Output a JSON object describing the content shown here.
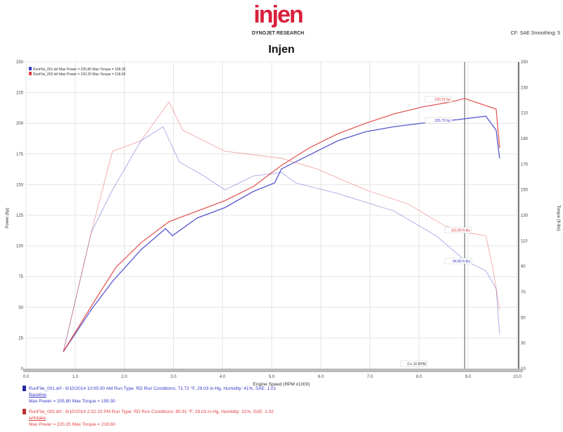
{
  "header": {
    "logo": "injen",
    "subtitle": "DYNOJET RESEARCH",
    "corner": "CF: SAE  Smoothing: 5",
    "title": "Injen"
  },
  "chart_data": {
    "type": "line",
    "xlabel": "Engine Speed (RPM x1000)",
    "ylabel": "Power (hp)",
    "y2label": "Torque (ft-lbs)",
    "xlim": [
      0,
      10
    ],
    "ylim": [
      0,
      250
    ],
    "y2lim": [
      10,
      250
    ],
    "xticks": [
      "0.0",
      "1.0",
      "2.0",
      "3.0",
      "4.0",
      "5.0",
      "6.0",
      "7.0",
      "8.0",
      "9.0",
      "10.0"
    ],
    "yticks": [
      "0",
      "25",
      "50",
      "75",
      "100",
      "125",
      "150",
      "175",
      "200",
      "225",
      "250"
    ],
    "y2ticks": [
      "10",
      "30",
      "50",
      "70",
      "90",
      "110",
      "130",
      "150",
      "170",
      "190",
      "210",
      "230",
      "250"
    ],
    "grid": true,
    "legend_position": "top-left",
    "cursor_rpm": 8.93,
    "colors": {
      "blue": "#3a3ac8",
      "red": "#e04040"
    },
    "series": [
      {
        "name": "RunFile_001.drf",
        "color": "blue",
        "measure": "power",
        "x": [
          0.76,
          1.33,
          1.76,
          2.34,
          2.84,
          2.98,
          3.48,
          4.05,
          4.63,
          5.06,
          5.2,
          5.63,
          6.35,
          6.92,
          7.49,
          8.07,
          8.78,
          9.36,
          9.57,
          9.64
        ],
        "y": [
          13.8,
          48.2,
          71.1,
          96.9,
          114.1,
          108.4,
          122.7,
          131.3,
          144.5,
          151.4,
          162.8,
          171.4,
          185.8,
          193.2,
          197.2,
          200.1,
          202.9,
          205.8,
          194.4,
          171.4
        ]
      },
      {
        "name": "RunFile_002.drf",
        "color": "red",
        "measure": "power",
        "x": [
          0.76,
          1.33,
          1.83,
          2.34,
          2.91,
          3.48,
          4.05,
          4.63,
          5.2,
          5.77,
          6.35,
          6.92,
          7.49,
          8.07,
          8.64,
          8.93,
          9.36,
          9.57,
          9.64
        ],
        "y": [
          13.8,
          51.0,
          82.6,
          102.6,
          119.8,
          128.4,
          137.0,
          148.5,
          165.7,
          180.0,
          191.5,
          200.1,
          207.6,
          213.3,
          217.3,
          220.2,
          214.4,
          211.6,
          180.0
        ]
      },
      {
        "name": "RunFile_001.drf",
        "color": "blue",
        "measure": "torque",
        "x": [
          0.76,
          1.33,
          1.76,
          2.34,
          2.79,
          3.12,
          3.62,
          4.05,
          4.63,
          5.2,
          5.49,
          6.35,
          7.49,
          8.35,
          8.93,
          9.36,
          9.57,
          9.64
        ],
        "y": [
          23.2,
          116.8,
          149.8,
          188.3,
          199.3,
          171.8,
          160.8,
          149.8,
          160.8,
          163.5,
          155.3,
          147.0,
          133.3,
          114.0,
          94.8,
          86.5,
          72.7,
          37.0
        ]
      },
      {
        "name": "RunFile_002.drf",
        "color": "red",
        "measure": "torque",
        "x": [
          0.76,
          1.33,
          1.76,
          2.34,
          2.91,
          3.19,
          4.05,
          5.2,
          5.92,
          6.92,
          7.78,
          8.5,
          8.93,
          9.36,
          9.5,
          9.64
        ],
        "y": [
          23.2,
          116.8,
          180.1,
          188.3,
          218.6,
          196.6,
          180.1,
          174.6,
          166.3,
          149.8,
          138.8,
          122.3,
          116.8,
          114.0,
          89.3,
          56.2
        ]
      }
    ],
    "annotations": [
      {
        "text": "220.22 hp",
        "color": "red"
      },
      {
        "text": "205.79 hp",
        "color": "blue"
      },
      {
        "text": "116.80 ft-lbs",
        "color": "red"
      },
      {
        "text": "94.80 ft-lbs",
        "color": "blue"
      },
      {
        "text": "0 x 10 RPM",
        "color": "black"
      }
    ],
    "top_legend": [
      {
        "text": "RunFile_001.drf Max Power = 205.80   Max Torque = 199.30",
        "color": "blue"
      },
      {
        "text": "RunFile_002.drf Max Power = 220.20   Max Torque = 218.60",
        "color": "red"
      }
    ]
  },
  "legend": [
    {
      "line1": "RunFile_001.drf - 6/10/2014 10:05:00 AM  Run Type: RD  Run Conditions: 71.72 °F, 29.03 in-Hg, Humidity: 41%, SAE: 1.01",
      "line2": "Baseline",
      "line3": "Max Power = 205.80  Max Torque = 199.30"
    },
    {
      "line1": "RunFile_002.drf - 6/10/2014 2:32:10 PM  Run Type: RD  Run Conditions: 80.91 °F, 29.03 in-Hg, Humidity: 31%, SAE: 1.02",
      "line2": "w/Intake",
      "line3": "Max Power = 220.20  Max Torque = 218.60"
    }
  ]
}
